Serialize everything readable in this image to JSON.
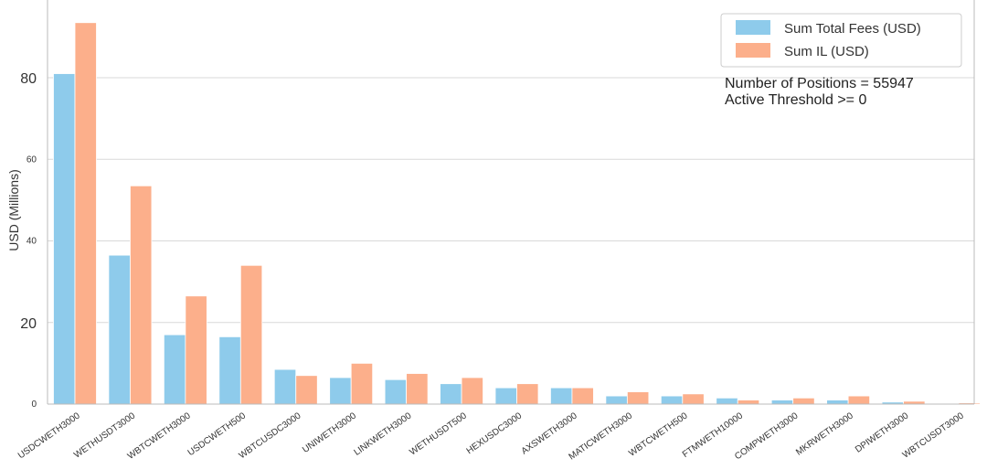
{
  "chart_data": {
    "type": "bar",
    "ylabel": "USD (Millions)",
    "ylim": [
      0,
      100
    ],
    "yticks": [
      "0",
      "20",
      "40",
      "60",
      "80"
    ],
    "grid": true,
    "legend_position": "top-right",
    "categories": [
      "USDCWETH3000",
      "WETHUSDT3000",
      "WBTCWETH3000",
      "USDCWETH500",
      "WBTCUSDC3000",
      "UNIWETH3000",
      "LINKWETH3000",
      "WETHUSDT500",
      "HEXUSDC3000",
      "AXSWETH3000",
      "MATICWETH3000",
      "WBTCWETH500",
      "FTMWETH10000",
      "COMPWETH3000",
      "MKRWETH3000",
      "DPIWETH3000",
      "WBTCUSDT3000"
    ],
    "series": [
      {
        "name": "Sum Total Fees (USD)",
        "color": "#8ecbeb",
        "values": [
          81,
          36.5,
          17,
          16.5,
          8.5,
          6.5,
          6,
          5,
          4,
          4,
          2,
          2,
          1.5,
          1,
          1,
          0.5,
          0
        ]
      },
      {
        "name": "Sum IL (USD)",
        "color": "#fcaf8b",
        "values": [
          93.5,
          53.5,
          26.5,
          34,
          7,
          10,
          7.5,
          6.5,
          5,
          4,
          3,
          2.5,
          1,
          1.5,
          2,
          0.7,
          0.3
        ]
      }
    ],
    "annotations": [
      "Number of Positions = 55947",
      "Active Threshold >= 0"
    ]
  }
}
